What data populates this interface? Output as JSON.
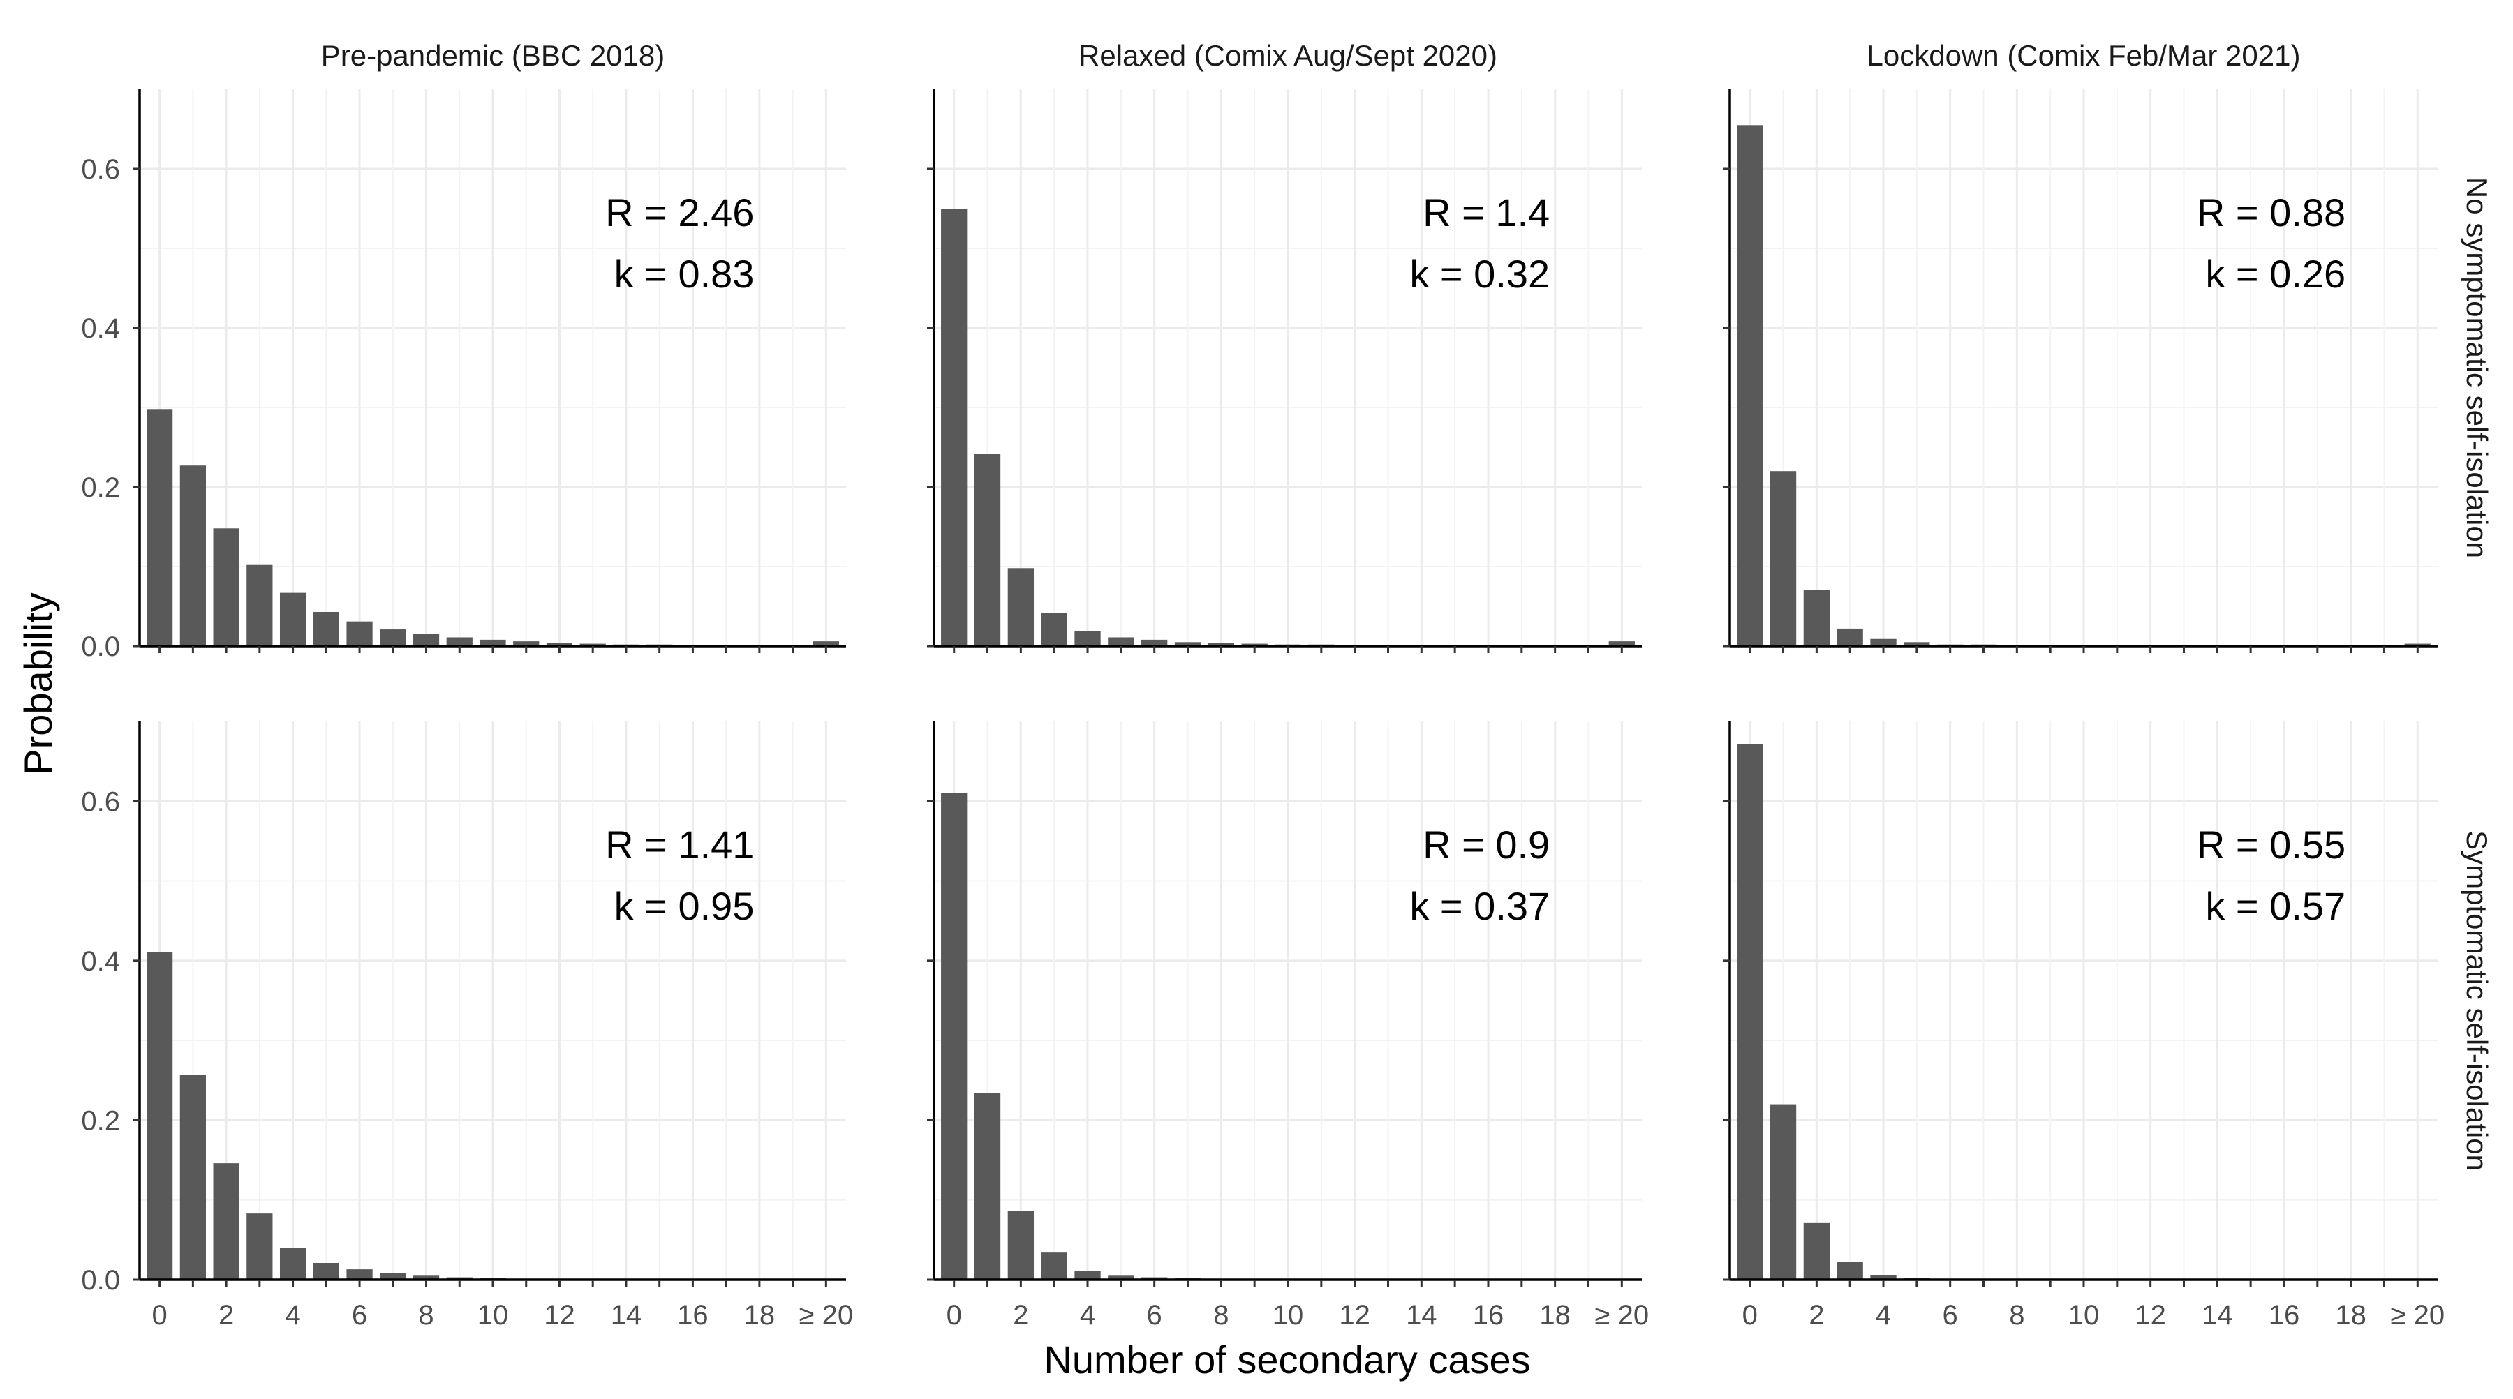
{
  "chart_data": {
    "type": "bar",
    "xlabel": "Number of secondary cases",
    "ylabel": "Probability",
    "ylim": [
      0,
      0.7
    ],
    "y_ticks": [
      0.0,
      0.2,
      0.4,
      0.6
    ],
    "y_tick_labels": [
      "0.0",
      "0.2",
      "0.4",
      "0.6"
    ],
    "x_tick_labels": [
      "0",
      "2",
      "4",
      "6",
      "8",
      "10",
      "12",
      "14",
      "16",
      "18",
      "≥ 20"
    ],
    "categories": [
      "0",
      "1",
      "2",
      "3",
      "4",
      "5",
      "6",
      "7",
      "8",
      "9",
      "10",
      "11",
      "12",
      "13",
      "14",
      "15",
      "16",
      "17",
      "18",
      "19",
      "≥ 20"
    ],
    "column_labels": [
      "Pre-pandemic (BBC 2018)",
      "Relaxed (Comix Aug/Sept 2020)",
      "Lockdown (Comix Feb/Mar 2021)"
    ],
    "row_labels": [
      "No symptomatic self-isolation",
      "Symptomatic self-isolation"
    ],
    "grid": true,
    "bar_color": "#595959",
    "panels": [
      {
        "row": 0,
        "col": 0,
        "annotation": [
          "R = 2.46",
          "k = 0.83"
        ],
        "values": [
          0.298,
          0.227,
          0.148,
          0.102,
          0.067,
          0.043,
          0.031,
          0.021,
          0.015,
          0.011,
          0.008,
          0.006,
          0.004,
          0.003,
          0.002,
          0.002,
          0.001,
          0.001,
          0.001,
          0.001,
          0.006
        ]
      },
      {
        "row": 0,
        "col": 1,
        "annotation": [
          "R = 1.4",
          "k = 0.32"
        ],
        "values": [
          0.55,
          0.242,
          0.098,
          0.042,
          0.019,
          0.011,
          0.008,
          0.005,
          0.004,
          0.003,
          0.002,
          0.002,
          0.001,
          0.001,
          0.001,
          0.001,
          0.001,
          0.001,
          0.001,
          0.001,
          0.006
        ]
      },
      {
        "row": 0,
        "col": 2,
        "annotation": [
          "R = 0.88",
          "k = 0.26"
        ],
        "values": [
          0.655,
          0.22,
          0.071,
          0.022,
          0.009,
          0.005,
          0.002,
          0.002,
          0.001,
          0.001,
          0.001,
          0.001,
          0.001,
          0.001,
          0.001,
          0.001,
          0.001,
          0.001,
          0.001,
          0.001,
          0.003
        ]
      },
      {
        "row": 1,
        "col": 0,
        "annotation": [
          "R = 1.41",
          "k = 0.95"
        ],
        "values": [
          0.411,
          0.257,
          0.146,
          0.083,
          0.04,
          0.021,
          0.013,
          0.008,
          0.005,
          0.003,
          0.002,
          0.001,
          0.001,
          0.001,
          0.001,
          0.0,
          0.0,
          0.0,
          0.0,
          0.0,
          0.0
        ]
      },
      {
        "row": 1,
        "col": 1,
        "annotation": [
          "R = 0.9",
          "k = 0.37"
        ],
        "values": [
          0.61,
          0.234,
          0.086,
          0.034,
          0.011,
          0.005,
          0.003,
          0.002,
          0.001,
          0.001,
          0.001,
          0.001,
          0.0,
          0.0,
          0.0,
          0.0,
          0.0,
          0.0,
          0.0,
          0.0,
          0.0
        ]
      },
      {
        "row": 1,
        "col": 2,
        "annotation": [
          "R = 0.55",
          "k = 0.57"
        ],
        "values": [
          0.672,
          0.22,
          0.071,
          0.022,
          0.006,
          0.002,
          0.001,
          0.001,
          0.0,
          0.0,
          0.0,
          0.0,
          0.0,
          0.0,
          0.0,
          0.0,
          0.0,
          0.0,
          0.0,
          0.0,
          0.0
        ]
      }
    ]
  }
}
